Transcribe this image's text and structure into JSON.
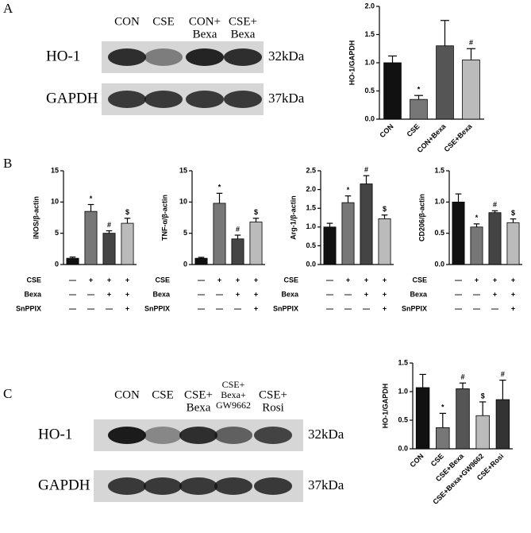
{
  "panel_labels": [
    "A",
    "B",
    "C"
  ],
  "blots": [
    {
      "lanes": [
        [
          "CON"
        ],
        [
          "CSE"
        ],
        [
          "CON+",
          "Bexa"
        ],
        [
          "CSE+",
          "Bexa"
        ]
      ],
      "rows": [
        {
          "name": "HO-1",
          "size": "32kDa"
        },
        {
          "name": "GAPDH",
          "size": "37kDa"
        }
      ]
    },
    {
      "lanes": [
        [
          "CON"
        ],
        [
          "CSE"
        ],
        [
          "CSE+",
          "Bexa"
        ],
        [
          "CSE+",
          "Bexa+",
          "GW9662"
        ],
        [
          "CSE+",
          "Rosi"
        ]
      ],
      "rows": [
        {
          "name": "HO-1",
          "size": "32kDa"
        },
        {
          "name": "GAPDH",
          "size": "37kDa"
        }
      ]
    }
  ],
  "chart_data": [
    {
      "type": "bar",
      "ylabel": "HO-1/GAPDH",
      "categories": [
        "CON",
        "CSE",
        "CON+Bexa",
        "CSE+Bexa"
      ],
      "values": [
        1.0,
        0.35,
        1.3,
        1.05
      ],
      "errors": [
        0.12,
        0.07,
        0.45,
        0.2
      ],
      "annotations": [
        null,
        "*",
        null,
        "#"
      ],
      "colors": [
        "#111111",
        "#777777",
        "#555555",
        "#bbbbbb"
      ],
      "ylim": [
        0,
        2
      ],
      "yticks": [
        {
          "value": 0,
          "label": "0.0"
        },
        0.5,
        {
          "value": 1,
          "label": "1.0"
        },
        1.5,
        {
          "value": 2,
          "label": "2.0"
        }
      ]
    },
    {
      "type": "bar",
      "ylabel": "iNOS/β-actin",
      "conditions": [
        {
          "name": "CSE",
          "marks": [
            "—",
            "+",
            "+",
            "+"
          ]
        },
        {
          "name": "Bexa",
          "marks": [
            "—",
            "—",
            "+",
            "+"
          ]
        },
        {
          "name": "SnPPIX",
          "marks": [
            "—",
            "—",
            "—",
            "+"
          ]
        }
      ],
      "values": [
        1.0,
        8.5,
        5.0,
        6.6
      ],
      "errors": [
        0.2,
        1.1,
        0.4,
        0.8
      ],
      "annotations": [
        null,
        "*",
        "#",
        "$"
      ],
      "colors": [
        "#111111",
        "#777777",
        "#444444",
        "#bbbbbb"
      ],
      "ylim": [
        0,
        15
      ],
      "yticks": [
        0,
        5,
        10,
        15
      ]
    },
    {
      "type": "bar",
      "ylabel": "TNF-α/β-actin",
      "conditions": [
        {
          "name": "CSE",
          "marks": [
            "—",
            "+",
            "+",
            "+"
          ]
        },
        {
          "name": "Bexa",
          "marks": [
            "—",
            "—",
            "+",
            "+"
          ]
        },
        {
          "name": "SnPPIX",
          "marks": [
            "—",
            "—",
            "—",
            "+"
          ]
        }
      ],
      "values": [
        1.0,
        9.8,
        4.1,
        6.8
      ],
      "errors": [
        0.15,
        1.6,
        0.6,
        0.6
      ],
      "annotations": [
        null,
        "*",
        "#",
        "$"
      ],
      "colors": [
        "#111111",
        "#777777",
        "#444444",
        "#bbbbbb"
      ],
      "ylim": [
        0,
        15
      ],
      "yticks": [
        0,
        5,
        10,
        15
      ]
    },
    {
      "type": "bar",
      "ylabel": "Arg-1/β-actin",
      "conditions": [
        {
          "name": "CSE",
          "marks": [
            "—",
            "+",
            "+",
            "+"
          ]
        },
        {
          "name": "Bexa",
          "marks": [
            "—",
            "—",
            "+",
            "+"
          ]
        },
        {
          "name": "SnPPIX",
          "marks": [
            "—",
            "—",
            "—",
            "+"
          ]
        }
      ],
      "values": [
        1.0,
        1.65,
        2.15,
        1.22
      ],
      "errors": [
        0.1,
        0.18,
        0.22,
        0.1
      ],
      "annotations": [
        null,
        "*",
        "#",
        "$"
      ],
      "colors": [
        "#111111",
        "#777777",
        "#444444",
        "#bbbbbb"
      ],
      "ylim": [
        0,
        2.5
      ],
      "yticks": [
        {
          "value": 0,
          "label": "0.0"
        },
        0.5,
        {
          "value": 1,
          "label": "1.0"
        },
        1.5,
        {
          "value": 2,
          "label": "2.0"
        },
        2.5
      ]
    },
    {
      "type": "bar",
      "ylabel": "CD206/β-actin",
      "conditions": [
        {
          "name": "CSE",
          "marks": [
            "—",
            "+",
            "+",
            "+"
          ]
        },
        {
          "name": "Bexa",
          "marks": [
            "—",
            "—",
            "+",
            "+"
          ]
        },
        {
          "name": "SnPPIX",
          "marks": [
            "—",
            "—",
            "—",
            "+"
          ]
        }
      ],
      "values": [
        1.0,
        0.6,
        0.83,
        0.67
      ],
      "errors": [
        0.13,
        0.05,
        0.03,
        0.06
      ],
      "annotations": [
        null,
        "*",
        "#",
        "$"
      ],
      "colors": [
        "#111111",
        "#777777",
        "#444444",
        "#bbbbbb"
      ],
      "ylim": [
        0,
        1.5
      ],
      "yticks": [
        {
          "value": 0,
          "label": "0.0"
        },
        0.5,
        {
          "value": 1,
          "label": "1.0"
        },
        1.5
      ]
    },
    {
      "type": "bar",
      "ylabel": "HO-1/GAPDH",
      "categories": [
        "CON",
        "CSE",
        "CSE+Bexa",
        "CSE+Bexa+GW9662",
        "CSE+Rosi"
      ],
      "values": [
        1.07,
        0.37,
        1.05,
        0.58,
        0.86
      ],
      "errors": [
        0.23,
        0.25,
        0.1,
        0.24,
        0.34
      ],
      "annotations": [
        null,
        "*",
        "#",
        "$",
        "#"
      ],
      "colors": [
        "#111111",
        "#777777",
        "#555555",
        "#bbbbbb",
        "#333333"
      ],
      "ylim": [
        0,
        1.5
      ],
      "yticks": [
        {
          "value": 0,
          "label": "0.0"
        },
        0.5,
        {
          "value": 1,
          "label": "1.0"
        },
        1.5
      ]
    }
  ]
}
